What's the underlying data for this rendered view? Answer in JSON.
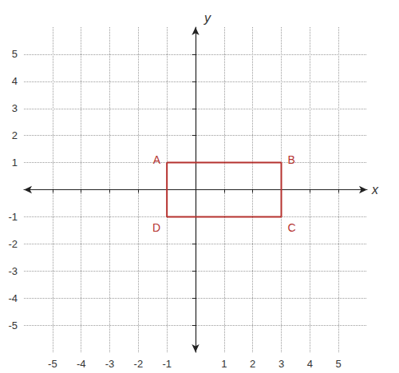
{
  "chart_data": {
    "type": "polygon",
    "x_label": "x",
    "y_label": "y",
    "x": [
      -1,
      3,
      3,
      -1
    ],
    "y": [
      1,
      1,
      -1,
      -1
    ],
    "point_labels": [
      "A",
      "B",
      "C",
      "D"
    ],
    "color": "#b5322f",
    "xlim": [
      -6,
      6
    ],
    "ylim": [
      -6,
      6
    ],
    "xticks": [
      -5,
      -4,
      -3,
      -2,
      -1,
      1,
      2,
      3,
      4,
      5
    ],
    "yticks": [
      -5,
      -4,
      -3,
      -2,
      -1,
      1,
      2,
      3,
      4,
      5
    ],
    "grid": true
  }
}
